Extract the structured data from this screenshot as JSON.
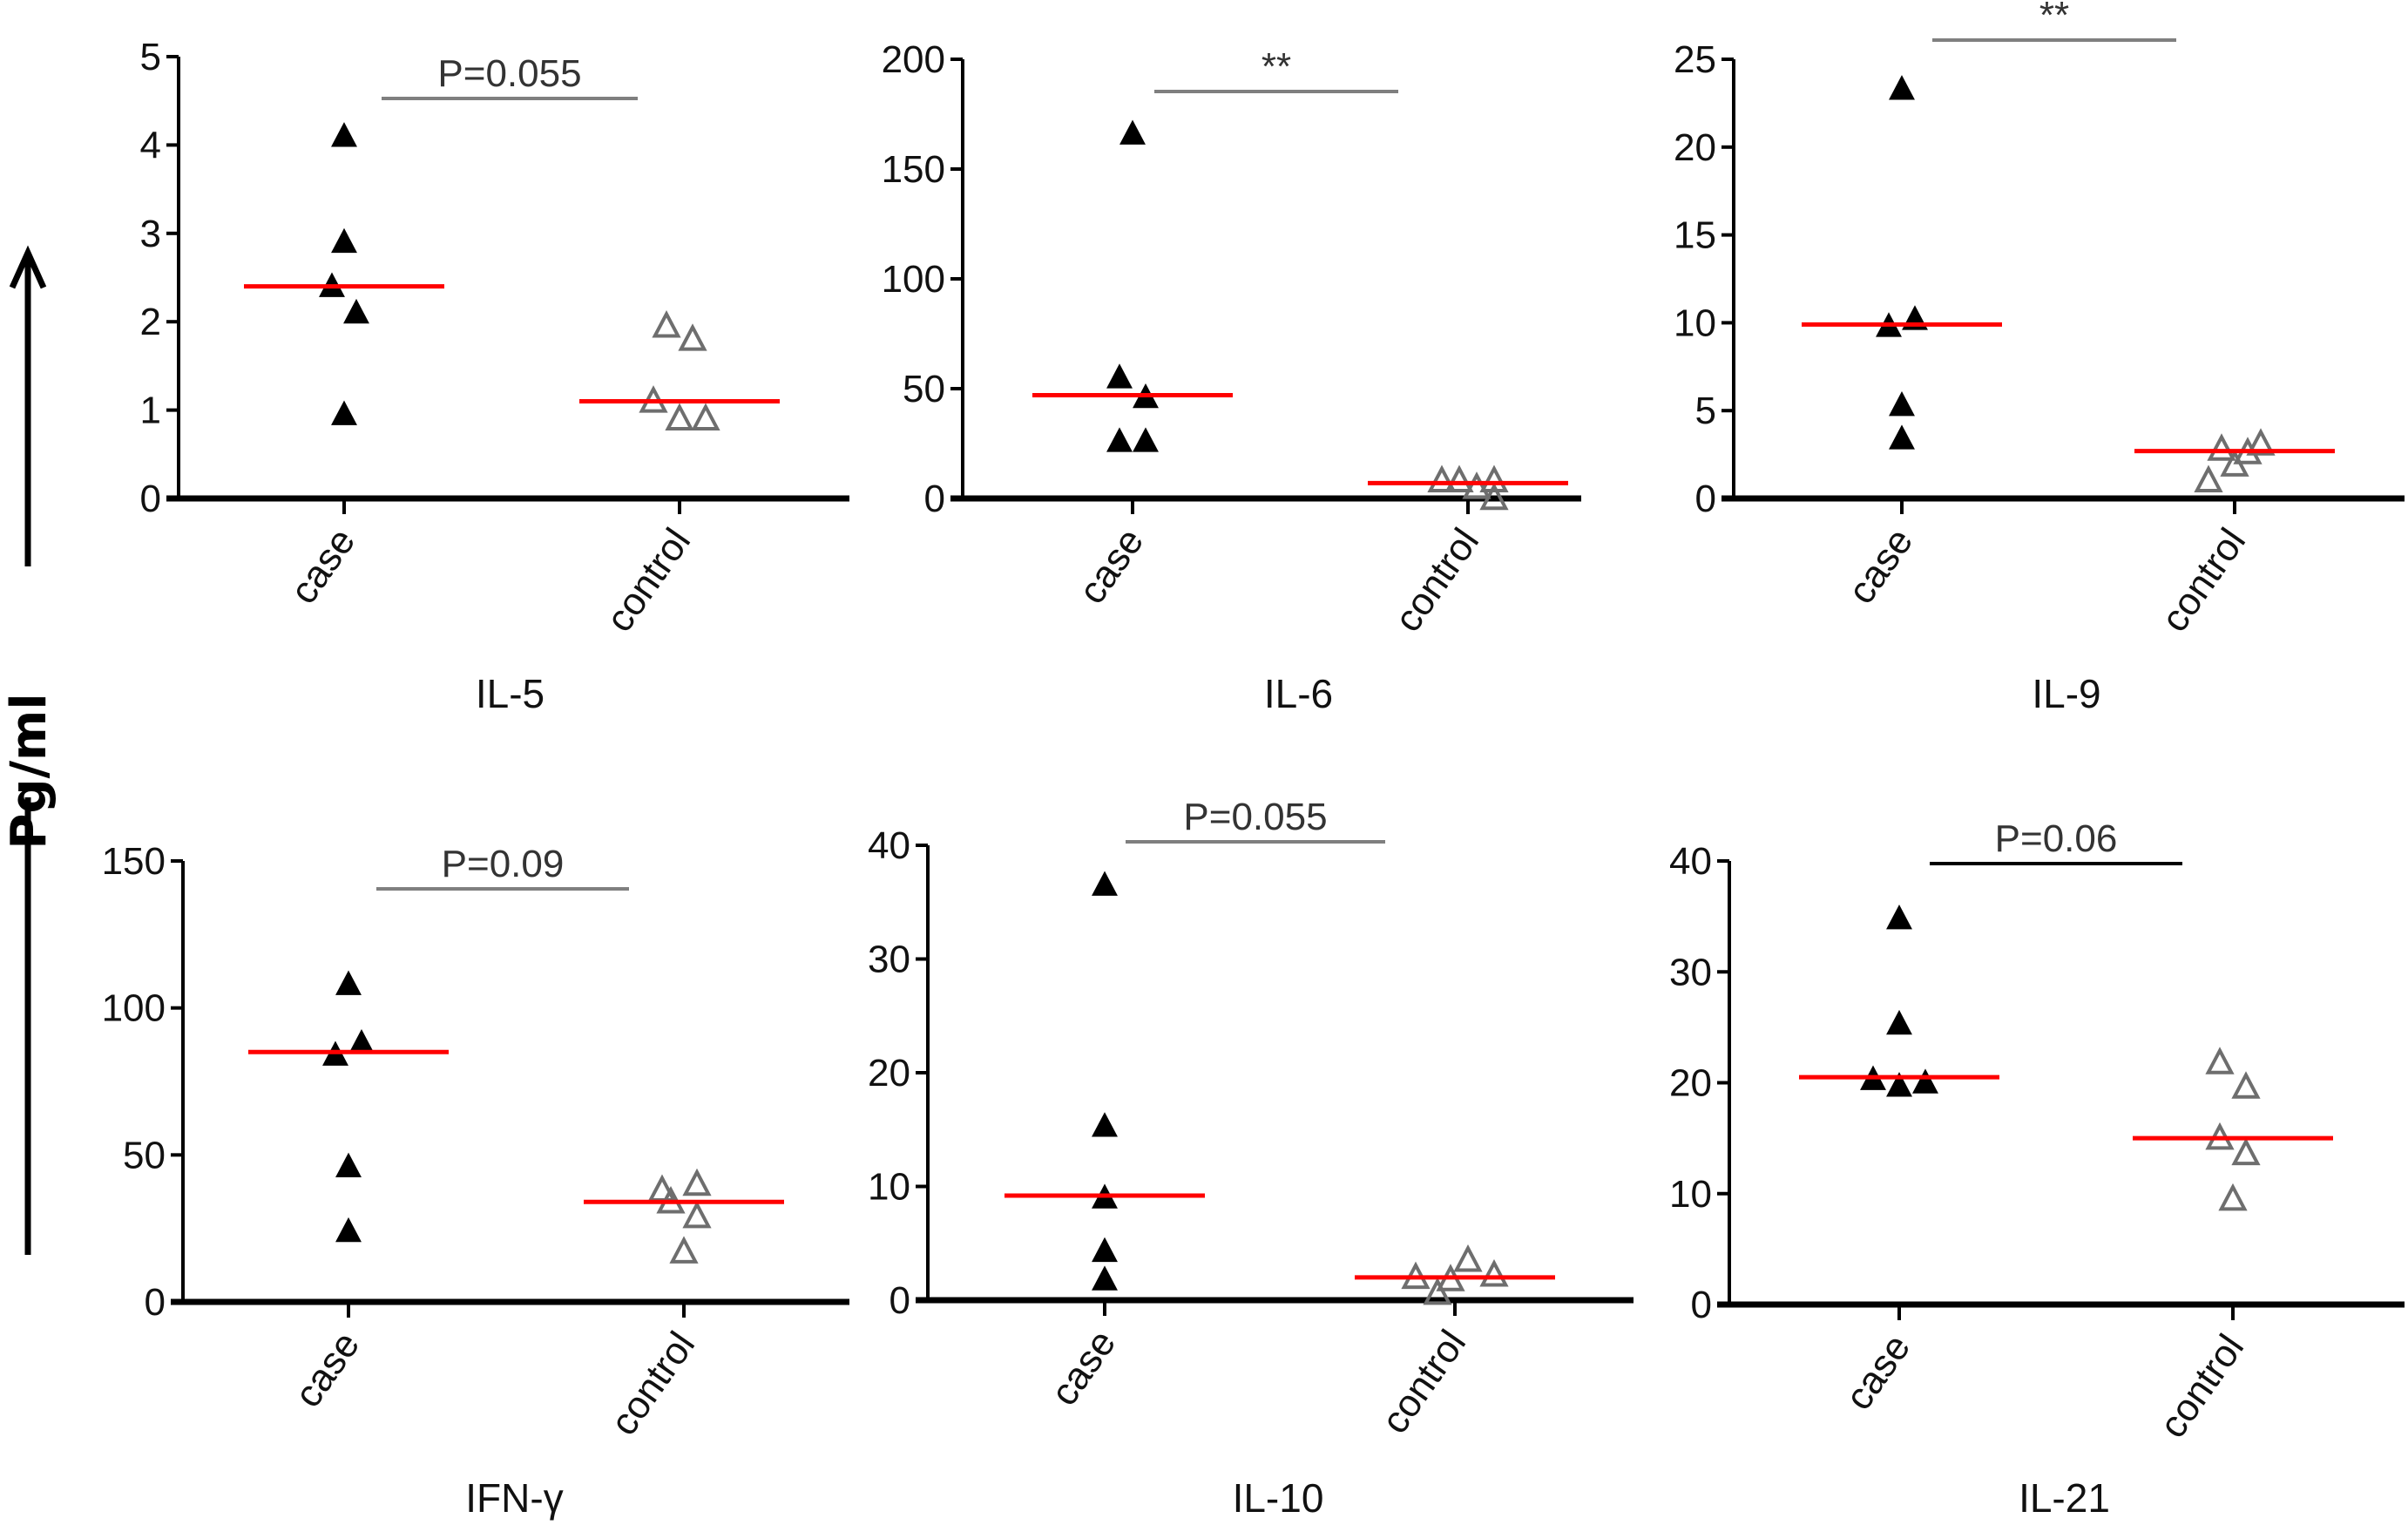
{
  "figure": {
    "y_axis_label": "Pg/ml"
  },
  "chart_data": [
    {
      "type": "scatter",
      "title": "IL-5",
      "xlabel": "",
      "ylabel": "Pg/ml",
      "categories": [
        "case",
        "control"
      ],
      "ylim": [
        0,
        5
      ],
      "yticks": [
        0,
        1,
        2,
        3,
        4,
        5
      ],
      "series": [
        {
          "name": "case",
          "values": [
            4.1,
            2.9,
            2.4,
            2.1,
            0.95
          ],
          "median": 2.4,
          "marker": "filled-triangle"
        },
        {
          "name": "control",
          "values": [
            1.95,
            1.8,
            1.1,
            0.9,
            0.9
          ],
          "median": 1.1,
          "marker": "open-triangle"
        }
      ],
      "significance": {
        "label": "P=0.055",
        "color": "#7f7f7f"
      },
      "grid": false
    },
    {
      "type": "scatter",
      "title": "IL-6",
      "xlabel": "",
      "ylabel": "Pg/ml",
      "categories": [
        "case",
        "control"
      ],
      "ylim": [
        0,
        200
      ],
      "yticks": [
        0,
        50,
        100,
        150,
        200
      ],
      "series": [
        {
          "name": "case",
          "values": [
            166,
            55,
            46,
            26,
            26
          ],
          "median": 47,
          "marker": "filled-triangle"
        },
        {
          "name": "control",
          "values": [
            8,
            8,
            0,
            5,
            8
          ],
          "median": 7,
          "marker": "open-triangle"
        }
      ],
      "significance": {
        "label": "**",
        "color": "#7f7f7f"
      },
      "grid": false
    },
    {
      "type": "scatter",
      "title": "IL-9",
      "xlabel": "",
      "ylabel": "Pg/ml",
      "categories": [
        "case",
        "control"
      ],
      "ylim": [
        0,
        25
      ],
      "yticks": [
        0,
        5,
        10,
        15,
        20,
        25
      ],
      "series": [
        {
          "name": "case",
          "values": [
            23.3,
            10.2,
            9.8,
            5.3,
            3.4
          ],
          "median": 9.9,
          "marker": "filled-triangle"
        },
        {
          "name": "control",
          "values": [
            2.8,
            2.6,
            3.1,
            1.9,
            1.0
          ],
          "median": 2.7,
          "marker": "open-triangle"
        }
      ],
      "significance": {
        "label": "**",
        "color": "#7f7f7f"
      },
      "grid": false
    },
    {
      "type": "scatter",
      "title": "IFN-γ",
      "xlabel": "",
      "ylabel": "Pg/ml",
      "categories": [
        "case",
        "control"
      ],
      "ylim": [
        0,
        150
      ],
      "yticks": [
        0,
        50,
        100,
        150
      ],
      "series": [
        {
          "name": "case",
          "values": [
            108,
            88,
            84,
            46,
            24
          ],
          "median": 85,
          "marker": "filled-triangle"
        },
        {
          "name": "control",
          "values": [
            38,
            40,
            34,
            29,
            17
          ],
          "median": 34,
          "marker": "open-triangle"
        }
      ],
      "significance": {
        "label": "P=0.09",
        "color": "#7f7f7f"
      },
      "grid": false
    },
    {
      "type": "scatter",
      "title": "IL-10",
      "xlabel": "",
      "ylabel": "Pg/ml",
      "categories": [
        "case",
        "control"
      ],
      "ylim": [
        0,
        40
      ],
      "yticks": [
        0,
        10,
        20,
        30,
        40
      ],
      "series": [
        {
          "name": "case",
          "values": [
            36.5,
            15.3,
            9.0,
            4.3,
            1.8
          ],
          "median": 9.2,
          "marker": "filled-triangle"
        },
        {
          "name": "control",
          "values": [
            2.0,
            3.5,
            0.6,
            1.8,
            2.2
          ],
          "median": 2.0,
          "marker": "open-triangle"
        }
      ],
      "significance": {
        "label": "P=0.055",
        "color": "#7f7f7f"
      },
      "grid": false
    },
    {
      "type": "scatter",
      "title": "IL-21",
      "xlabel": "",
      "ylabel": "Pg/ml",
      "categories": [
        "case",
        "control"
      ],
      "ylim": [
        0,
        40
      ],
      "yticks": [
        0,
        10,
        20,
        30,
        40
      ],
      "series": [
        {
          "name": "case",
          "values": [
            34.8,
            25.3,
            20.3,
            19.7,
            20.0
          ],
          "median": 20.5,
          "marker": "filled-triangle"
        },
        {
          "name": "control",
          "values": [
            21.8,
            19.6,
            15.0,
            13.6,
            9.5
          ],
          "median": 15.0,
          "marker": "open-triangle"
        }
      ],
      "significance": {
        "label": "P=0.06",
        "color": "#000000"
      },
      "grid": false
    }
  ],
  "colors": {
    "median_line": "#ff0000",
    "case_marker": "#000000",
    "control_marker": "#6e6e6e",
    "axis": "#000000"
  }
}
